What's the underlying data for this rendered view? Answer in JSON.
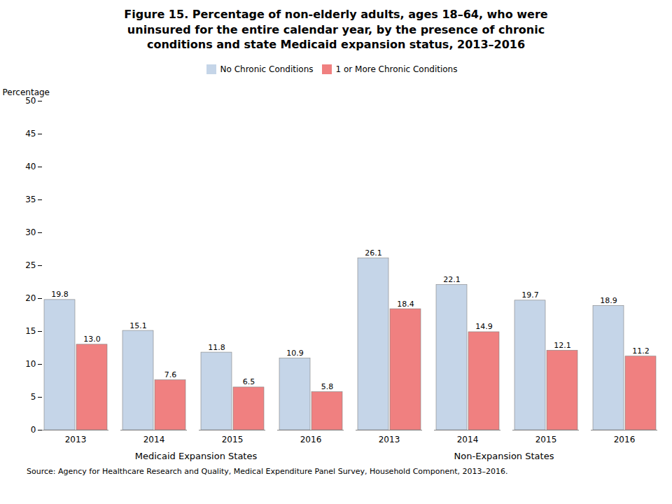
{
  "chart_data": {
    "type": "bar",
    "title": "Figure 15. Percentage of non-elderly adults, ages 18–64, who were\nuninsured for the entire calendar year, by the presence of chronic\nconditions and state Medicaid expansion status, 2013–2016",
    "ylabel": "Percentage",
    "annotations": [
      "Medicaid Expansion States",
      "Non-Expansion States"
    ],
    "caption": "Source: Agency for Healthcare Research and Quality, Medical Expenditure Panel Survey, Household Component, 2013–2016.",
    "categories": [
      "2013",
      "2014",
      "2015",
      "2016",
      "2013",
      "2014",
      "2015",
      "2016"
    ],
    "series": [
      {
        "name": "No Chronic Conditions",
        "color": "#c5d5e8",
        "values": [
          19.8,
          15.1,
          11.8,
          10.9,
          26.1,
          22.1,
          19.7,
          18.9
        ],
        "value_labels": [
          "19.8",
          "15.1",
          "11.8",
          "10.9",
          "26.1",
          "22.1",
          "19.7",
          "18.9"
        ]
      },
      {
        "name": "1 or More Chronic Conditions",
        "color": "#f08080",
        "values": [
          13.0,
          7.6,
          6.5,
          5.8,
          18.4,
          14.9,
          12.1,
          11.2
        ],
        "value_labels": [
          "13.0",
          "7.6",
          "6.5",
          "5.8",
          "18.4",
          "14.9",
          "12.1",
          "11.2"
        ]
      }
    ],
    "ylim": [
      0,
      50
    ],
    "yticks": [
      0,
      5,
      10,
      15,
      20,
      25,
      30,
      35,
      40,
      45,
      50
    ],
    "grid": false,
    "legend": "top",
    "data_labels": true
  }
}
